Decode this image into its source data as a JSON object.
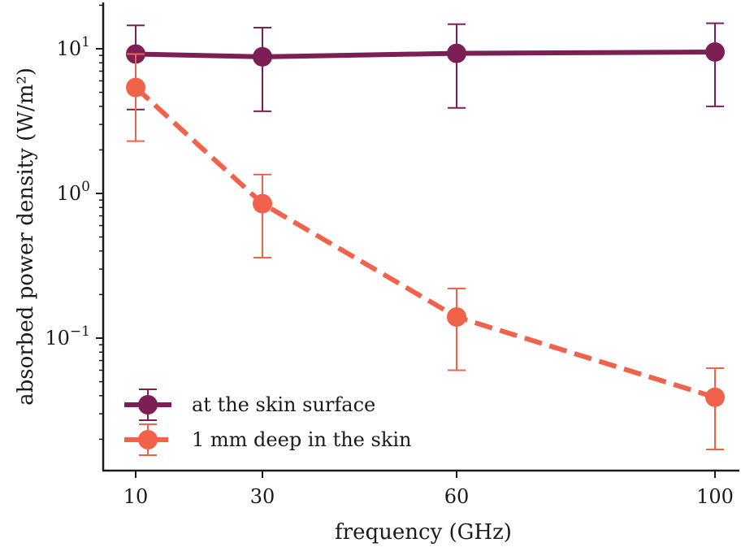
{
  "chart_data": {
    "type": "line",
    "xlabel": "frequency (GHz)",
    "ylabel": "absorbed power density (W/m²)",
    "yscale": "log",
    "ylim": [
      0.012,
      20
    ],
    "x_ticks": [
      "10",
      "30",
      "60",
      "100"
    ],
    "y_ticks": [
      {
        "value": 10,
        "base": "10",
        "exp": "1"
      },
      {
        "value": 1,
        "base": "10",
        "exp": "0"
      },
      {
        "value": 0.1,
        "base": "10",
        "exp": "−1"
      }
    ],
    "grid": false,
    "legend_position": "lower-left",
    "series": [
      {
        "name": "at the skin surface",
        "color": "#7b1f55",
        "linestyle": "solid",
        "x": [
          10,
          30,
          60,
          100
        ],
        "y": [
          9.2,
          8.8,
          9.3,
          9.5
        ],
        "err_low": [
          3.8,
          3.7,
          3.9,
          4.0
        ],
        "err_high": [
          14.5,
          14.0,
          14.8,
          15.0
        ]
      },
      {
        "name": "1 mm deep in the skin",
        "color": "#f0624a",
        "linestyle": "dashed",
        "x": [
          10,
          30,
          60,
          100
        ],
        "y": [
          5.4,
          0.85,
          0.14,
          0.039
        ],
        "err_low": [
          2.3,
          0.36,
          0.06,
          0.017
        ],
        "err_high": [
          9.2,
          1.35,
          0.22,
          0.062
        ]
      }
    ]
  }
}
